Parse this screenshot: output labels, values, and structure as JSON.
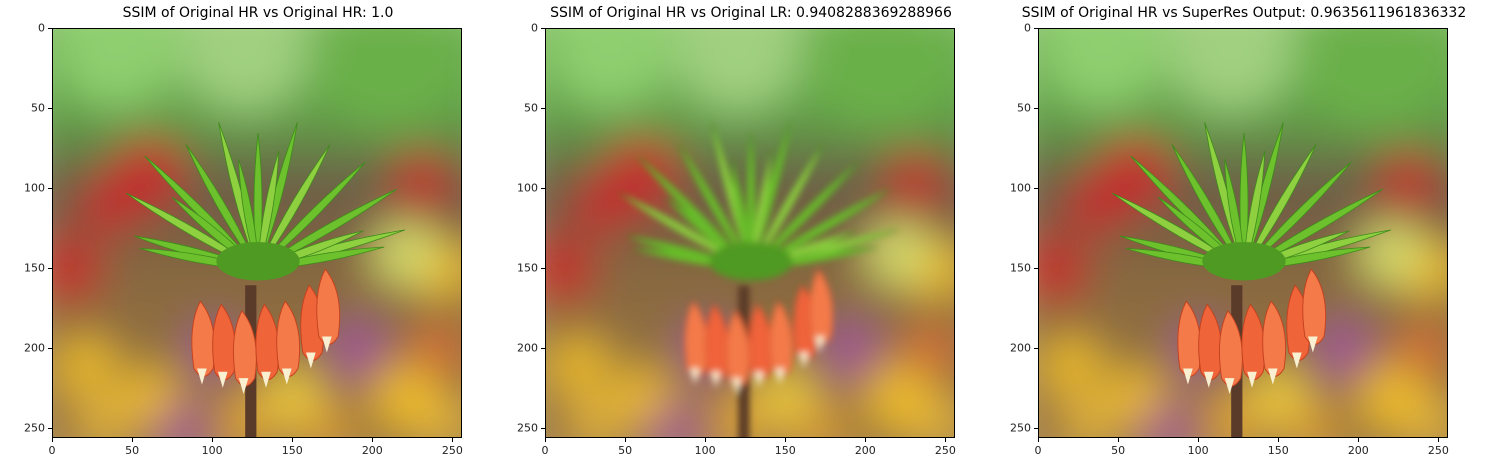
{
  "panels": [
    {
      "title": "SSIM of Original HR vs Original HR: 1.0",
      "variant": "sharp"
    },
    {
      "title": "SSIM of Original HR vs Original LR: 0.9408288369288966",
      "variant": "blurry"
    },
    {
      "title": "SSIM of Original HR vs SuperRes Output: 0.9635611961836332",
      "variant": "sharp"
    }
  ],
  "axes": {
    "x_ticks": [
      "0",
      "50",
      "100",
      "150",
      "200",
      "250"
    ],
    "y_ticks": [
      "0",
      "50",
      "100",
      "150",
      "200",
      "250"
    ]
  },
  "image_subject": "crown-imperial-fritillaria-flower",
  "colors": {
    "background_green": "#5fa046",
    "leaf_green": "#6cc12c",
    "petal_orange": "#f0643a",
    "bokeh_red": "#c8202a",
    "bokeh_yellow": "#f2c020",
    "bokeh_purple": "#a0509a"
  }
}
